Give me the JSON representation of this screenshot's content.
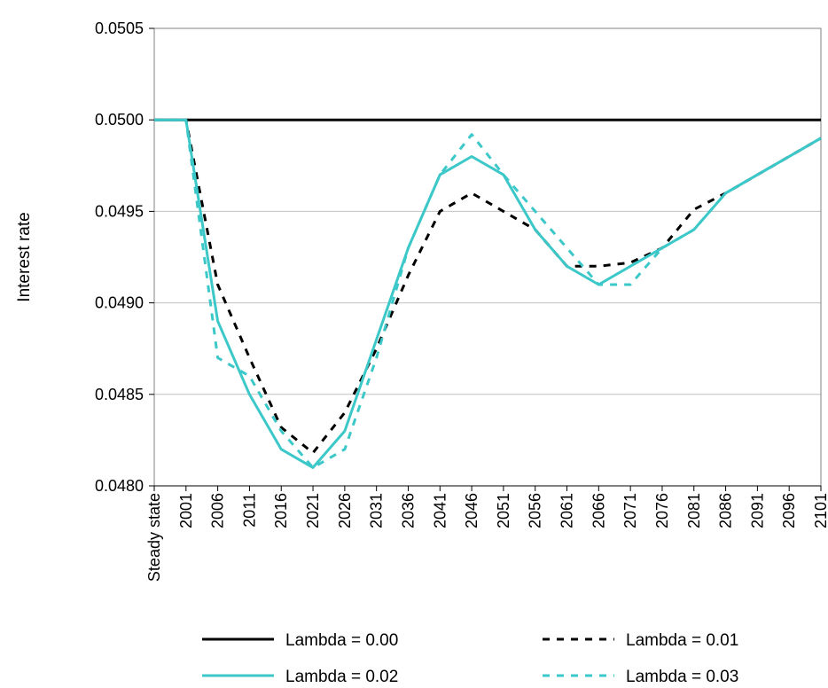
{
  "chart_data": {
    "type": "line",
    "title": "",
    "xlabel": "",
    "ylabel": "Interest rate",
    "categories": [
      "Steady state",
      "2001",
      "2006",
      "2011",
      "2016",
      "2021",
      "2026",
      "2031",
      "2036",
      "2041",
      "2046",
      "2051",
      "2056",
      "2061",
      "2066",
      "2071",
      "2076",
      "2081",
      "2086",
      "2091",
      "2096",
      "2101"
    ],
    "ylim": [
      0.048,
      0.0505
    ],
    "yticks": [
      "0.0480",
      "0.0485",
      "0.0490",
      "0.0495",
      "0.0500",
      "0.0505"
    ],
    "grid": "horizontal",
    "legend_placement": "bottom",
    "series": [
      {
        "name": "Lambda = 0.00",
        "color": "#000000",
        "dash": "solid",
        "values": [
          0.05,
          0.05,
          0.05,
          0.05,
          0.05,
          0.05,
          0.05,
          0.05,
          0.05,
          0.05,
          0.05,
          0.05,
          0.05,
          0.05,
          0.05,
          0.05,
          0.05,
          0.05,
          0.05,
          0.05,
          0.05,
          0.05
        ]
      },
      {
        "name": "Lambda = 0.01",
        "color": "#000000",
        "dash": "dashed",
        "values": [
          0.05,
          0.05,
          0.0491,
          0.0487,
          0.04832,
          0.04818,
          0.0484,
          0.04875,
          0.04915,
          0.0495,
          0.0496,
          0.0495,
          0.0494,
          0.0492,
          0.0492,
          0.04922,
          0.0493,
          0.04951,
          0.0496,
          0.0497,
          0.0498,
          0.0499
        ]
      },
      {
        "name": "Lambda = 0.02",
        "color": "#3cc8c8",
        "dash": "solid",
        "values": [
          0.05,
          0.05,
          0.0489,
          0.0485,
          0.0482,
          0.0481,
          0.0483,
          0.0488,
          0.0493,
          0.0497,
          0.0498,
          0.0497,
          0.0494,
          0.0492,
          0.0491,
          0.0492,
          0.0493,
          0.0494,
          0.0496,
          0.0497,
          0.0498,
          0.0499
        ]
      },
      {
        "name": "Lambda = 0.03",
        "color": "#3cc8c8",
        "dash": "dashed",
        "values": [
          0.05,
          0.05,
          0.0487,
          0.0486,
          0.0483,
          0.0481,
          0.0482,
          0.0487,
          0.0493,
          0.0497,
          0.04992,
          0.0497,
          0.0495,
          0.0493,
          0.0491,
          0.0491,
          0.0493,
          0.0494,
          0.0496,
          0.0497,
          0.0498,
          0.0499
        ]
      }
    ]
  }
}
